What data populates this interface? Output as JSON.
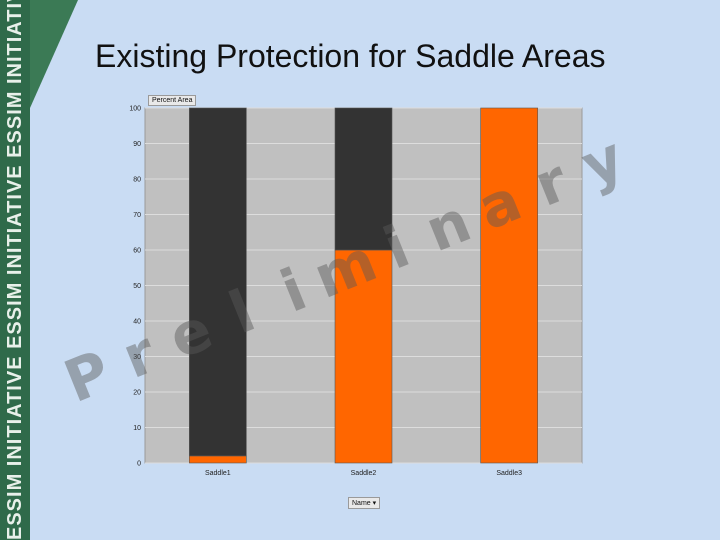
{
  "slide": {
    "title": "Existing Protection for Saddle Areas",
    "sidebar_text": "ESSIM INITIATIVE ESSIM INITIATIVE ESSIM INITIATIVE ESSIM INITIATIVE ESSIM INITIATIVE",
    "watermark": "Preliminary"
  },
  "colors": {
    "protected": "#ff6600",
    "unprotected": "#333333",
    "plot_background": "#c0c0c0",
    "gridline": "#dddddd",
    "sidebar": "#2f6a4a"
  },
  "chart_data": {
    "type": "bar",
    "stacked": true,
    "categories": [
      "Saddle1",
      "Saddle2",
      "Saddle3"
    ],
    "series": [
      {
        "values": [
          2,
          60,
          100
        ]
      },
      {
        "values": [
          98,
          40,
          0
        ]
      }
    ],
    "xlabel": "Name",
    "ylabel": "Percent Area",
    "ylim": [
      0,
      100
    ],
    "yticks": [
      0,
      10,
      20,
      30,
      40,
      50,
      60,
      70,
      80,
      90,
      100
    ],
    "grid": true
  }
}
